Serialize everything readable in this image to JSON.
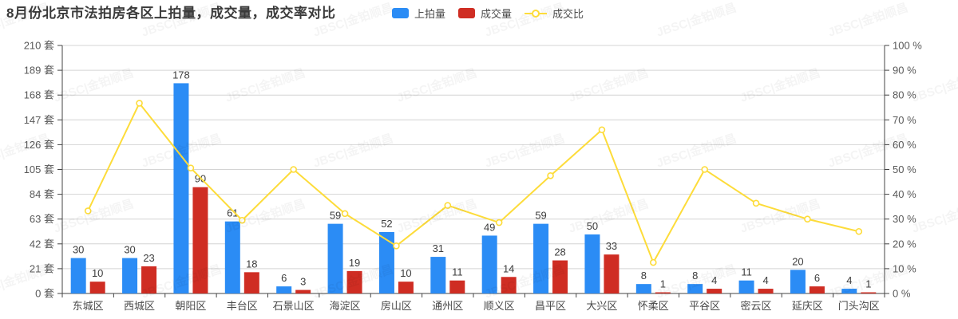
{
  "title": "8月份北京市法拍房各区上拍量，成交量，成交率对比",
  "watermark": "JBSC|金铂顺昌",
  "colors": {
    "bar_blue": "#2b8cf5",
    "bar_red": "#cf2d23",
    "line_yellow": "#fddc3a",
    "grid": "#d4d4d4",
    "axis": "#444444",
    "title_text": "#3a3a3a",
    "tick_text": "#595959",
    "category_text": "#4a4a4a",
    "value_text": "#3d3d3d"
  },
  "legend": {
    "items": [
      {
        "label": "上拍量",
        "type": "bar",
        "color": "#2b8cf5"
      },
      {
        "label": "成交量",
        "type": "bar",
        "color": "#cf2d23"
      },
      {
        "label": "成交比",
        "type": "line",
        "color": "#fddc3a"
      }
    ]
  },
  "chart_data": {
    "type": "bar+line",
    "title": "8月份北京市法拍房各区上拍量，成交量，成交率对比",
    "categories": [
      "东城区",
      "西城区",
      "朝阳区",
      "丰台区",
      "石景山区",
      "海淀区",
      "房山区",
      "通州区",
      "顺义区",
      "昌平区",
      "大兴区",
      "怀柔区",
      "平谷区",
      "密云区",
      "延庆区",
      "门头沟区"
    ],
    "series": [
      {
        "name": "上拍量",
        "type": "bar",
        "axis": "left",
        "color": "#2b8cf5",
        "values": [
          30,
          30,
          178,
          61,
          6,
          59,
          52,
          31,
          49,
          59,
          50,
          8,
          8,
          11,
          20,
          4
        ]
      },
      {
        "name": "成交量",
        "type": "bar",
        "axis": "left",
        "color": "#cf2d23",
        "values": [
          10,
          23,
          90,
          18,
          3,
          19,
          10,
          11,
          14,
          28,
          33,
          1,
          4,
          4,
          6,
          1
        ]
      },
      {
        "name": "成交比",
        "type": "line",
        "axis": "right",
        "color": "#fddc3a",
        "unit": "%",
        "values": [
          33.3,
          76.7,
          50.6,
          29.5,
          50.0,
          32.2,
          19.2,
          35.5,
          28.6,
          47.5,
          66.0,
          12.5,
          50.0,
          36.4,
          30.0,
          25.0
        ]
      }
    ],
    "left_axis": {
      "min": 0,
      "max": 210,
      "step": 21,
      "unit": "套",
      "tick_labels": [
        "0 套",
        "21 套",
        "42 套",
        "63 套",
        "84 套",
        "105 套",
        "126 套",
        "147 套",
        "168 套",
        "189 套",
        "210 套"
      ]
    },
    "right_axis": {
      "min": 0,
      "max": 100,
      "step": 10,
      "unit": "%",
      "tick_labels": [
        "0 %",
        "10 %",
        "20 %",
        "30 %",
        "40 %",
        "50 %",
        "60 %",
        "70 %",
        "80 %",
        "90 %",
        "100 %"
      ]
    },
    "grid": true,
    "value_labels": true,
    "legend_position": "top-center"
  }
}
